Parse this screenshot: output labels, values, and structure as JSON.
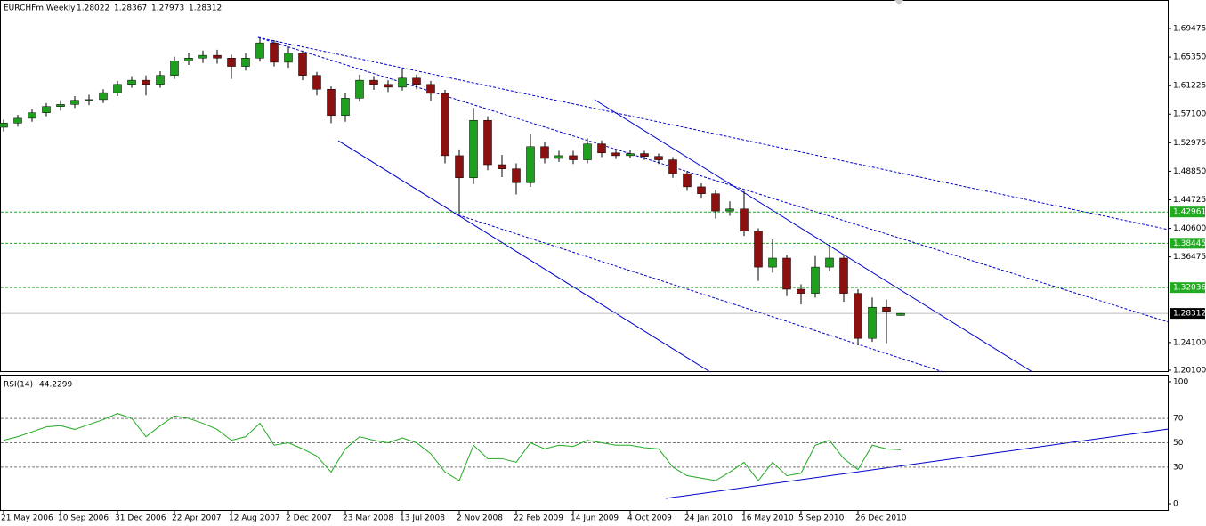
{
  "chart_data": [
    {
      "type": "candlestick",
      "title": "EURCHFm,Weekly",
      "categories": [
        "21 May 2006",
        null,
        null,
        null,
        "10 Sep 2006",
        null,
        null,
        null,
        "31 Dec 2006",
        null,
        null,
        null,
        "22 Apr 2007",
        null,
        null,
        null,
        "12 Aug 2007",
        null,
        null,
        null,
        "2 Dec 2007",
        null,
        null,
        null,
        "23 Mar 2008",
        null,
        null,
        null,
        "13 Jul 2008",
        null,
        null,
        null,
        "2 Nov 2008",
        null,
        null,
        null,
        "22 Feb 2009",
        null,
        null,
        null,
        "14 Jun 2009",
        null,
        null,
        null,
        "4 Oct 2009",
        null,
        null,
        null,
        "24 Jan 2010",
        null,
        null,
        null,
        "16 May 2010",
        null,
        null,
        null,
        "5 Sep 2010",
        null,
        null,
        null,
        "26 Dec 2010",
        null,
        null,
        null
      ],
      "open": [
        1.552,
        1.558,
        1.565,
        1.573,
        1.582,
        1.585,
        1.591,
        1.592,
        1.602,
        1.614,
        1.62,
        1.614,
        1.627,
        1.648,
        1.652,
        1.656,
        1.652,
        1.64,
        1.652,
        1.674,
        1.646,
        1.659,
        1.627,
        1.607,
        1.569,
        1.594,
        1.62,
        1.614,
        1.61,
        1.623,
        1.614,
        1.601,
        1.511,
        1.479,
        1.562,
        1.498,
        1.492,
        1.472,
        1.524,
        1.507,
        1.511,
        1.505,
        1.528,
        1.515,
        1.511,
        1.514,
        1.51,
        1.505,
        1.485,
        1.466,
        1.456,
        1.431,
        1.434,
        1.402,
        1.35,
        1.363,
        1.318,
        1.312,
        1.35,
        1.363,
        1.312,
        1.247,
        1.292,
        1.28022
      ],
      "high": [
        1.563,
        1.57,
        1.578,
        1.587,
        1.591,
        1.597,
        1.599,
        1.607,
        1.619,
        1.626,
        1.627,
        1.633,
        1.654,
        1.66,
        1.663,
        1.664,
        1.657,
        1.659,
        1.681,
        1.678,
        1.668,
        1.663,
        1.632,
        1.611,
        1.601,
        1.628,
        1.626,
        1.62,
        1.636,
        1.628,
        1.619,
        1.606,
        1.52,
        1.58,
        1.568,
        1.512,
        1.5,
        1.542,
        1.531,
        1.518,
        1.518,
        1.536,
        1.533,
        1.52,
        1.519,
        1.518,
        1.514,
        1.509,
        1.489,
        1.471,
        1.462,
        1.445,
        1.46,
        1.406,
        1.39,
        1.368,
        1.325,
        1.366,
        1.382,
        1.368,
        1.318,
        1.306,
        1.303,
        1.28367
      ],
      "low": [
        1.546,
        1.553,
        1.56,
        1.568,
        1.576,
        1.58,
        1.584,
        1.587,
        1.597,
        1.609,
        1.598,
        1.609,
        1.622,
        1.642,
        1.645,
        1.644,
        1.622,
        1.634,
        1.647,
        1.64,
        1.638,
        1.62,
        1.598,
        1.558,
        1.56,
        1.589,
        1.606,
        1.603,
        1.605,
        1.607,
        1.59,
        1.5,
        1.427,
        1.47,
        1.49,
        1.48,
        1.455,
        1.466,
        1.5,
        1.502,
        1.499,
        1.5,
        1.509,
        1.506,
        1.507,
        1.505,
        1.499,
        1.479,
        1.46,
        1.449,
        1.42,
        1.424,
        1.395,
        1.33,
        1.342,
        1.308,
        1.296,
        1.306,
        1.344,
        1.3,
        1.237,
        1.242,
        1.24,
        1.27973
      ],
      "close": [
        1.558,
        1.565,
        1.573,
        1.582,
        1.585,
        1.591,
        1.592,
        1.602,
        1.614,
        1.62,
        1.614,
        1.627,
        1.648,
        1.652,
        1.656,
        1.652,
        1.64,
        1.652,
        1.674,
        1.646,
        1.659,
        1.627,
        1.607,
        1.569,
        1.594,
        1.62,
        1.614,
        1.61,
        1.623,
        1.614,
        1.601,
        1.511,
        1.479,
        1.562,
        1.498,
        1.492,
        1.472,
        1.524,
        1.507,
        1.511,
        1.505,
        1.528,
        1.515,
        1.511,
        1.514,
        1.51,
        1.505,
        1.485,
        1.466,
        1.456,
        1.431,
        1.434,
        1.402,
        1.35,
        1.363,
        1.318,
        1.312,
        1.35,
        1.363,
        1.312,
        1.247,
        1.292,
        1.286,
        1.28312
      ],
      "up_color": "#1f9e1f",
      "down_color": "#8b1010",
      "ylim": [
        1.1984,
        1.7359
      ],
      "yticks": [
        1.69475,
        {
          "value": 1.6535,
          "label": "1.65350"
        },
        1.61225,
        {
          "value": 1.571,
          "label": "1.57100"
        },
        1.52975,
        {
          "value": 1.4885,
          "label": "1.48850"
        },
        1.44725,
        {
          "value": 1.406,
          "label": "1.40600"
        },
        1.36475,
        {
          "value": 1.241,
          "label": "1.24100"
        },
        {
          "value": 1.201,
          "label": "1.20100"
        }
      ],
      "levels": [
        1.42961,
        1.38445,
        1.32036
      ],
      "level_color": "#22aa22"
    },
    {
      "type": "line",
      "title": "RSI(14)",
      "values": [
        52,
        55,
        59,
        63,
        64,
        61,
        65,
        69,
        74,
        70,
        55,
        64,
        72,
        70,
        66,
        61,
        52,
        55,
        66,
        48,
        50,
        45,
        39,
        26,
        45,
        55,
        52,
        50,
        54,
        50,
        41,
        26,
        19,
        48,
        37,
        37,
        34,
        50,
        45,
        48,
        47,
        52,
        50,
        48,
        48,
        46,
        45,
        30,
        23,
        21,
        19,
        26,
        34,
        19,
        34,
        23,
        25,
        48,
        52,
        37,
        28,
        48,
        45,
        44.2299
      ],
      "color": "#22aa22",
      "ylim": [
        -5.8,
        105.8
      ],
      "yticks": [
        0,
        100
      ],
      "levels": [
        30,
        50,
        70
      ]
    }
  ]
}
